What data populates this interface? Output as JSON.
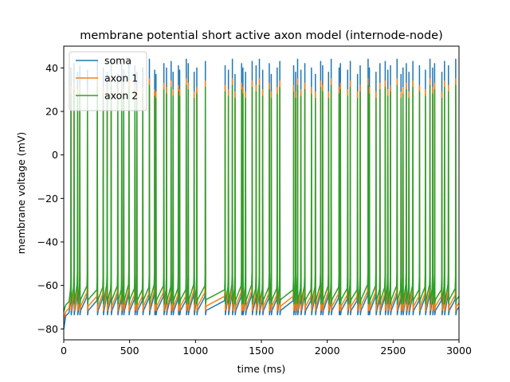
{
  "chart_data": {
    "type": "line",
    "title": "membrane potential short active axon model (internode-node)",
    "xlabel": "time (ms)",
    "ylabel": "membrane voltage (mV)",
    "xlim": [
      0,
      3000
    ],
    "ylim": [
      -85,
      50
    ],
    "xticks": [
      0,
      500,
      1000,
      1500,
      2000,
      2500,
      3000
    ],
    "yticks": [
      -80,
      -60,
      -40,
      -20,
      0,
      20,
      40
    ],
    "grid": false,
    "legend_position": "top-left",
    "spike_times_ms": [
      55,
      78,
      105,
      122,
      180,
      255,
      300,
      330,
      360,
      410,
      440,
      455,
      495,
      540,
      555,
      600,
      650,
      690,
      700,
      760,
      780,
      815,
      830,
      870,
      880,
      930,
      945,
      990,
      1010,
      1075,
      1225,
      1250,
      1280,
      1300,
      1350,
      1360,
      1380,
      1430,
      1460,
      1485,
      1510,
      1560,
      1575,
      1620,
      1640,
      1745,
      1760,
      1775,
      1800,
      1830,
      1880,
      1910,
      1950,
      1965,
      2010,
      2030,
      2090,
      2100,
      2155,
      2175,
      2230,
      2250,
      2310,
      2320,
      2370,
      2400,
      2440,
      2460,
      2480,
      2530,
      2560,
      2575,
      2600,
      2620,
      2650,
      2700,
      2745,
      2780,
      2800,
      2815,
      2870,
      2890,
      2920,
      2975
    ],
    "series": [
      {
        "name": "soma",
        "color": "#1f77b4",
        "baseline_mV": -71,
        "resting_start_mV": -80,
        "peak_values_mV": [
          40,
          42,
          38,
          41,
          39,
          43,
          40,
          38,
          44,
          37,
          42,
          39,
          43,
          41,
          38,
          40,
          44,
          39,
          37,
          42,
          40,
          43,
          38,
          41,
          39,
          44,
          42,
          38,
          40,
          43,
          41,
          39,
          44,
          37,
          42,
          40,
          38,
          43,
          41,
          44,
          39,
          42,
          37,
          40,
          43,
          41,
          38,
          44,
          39,
          42,
          40,
          37,
          43,
          41,
          38,
          44,
          40,
          42,
          39,
          43,
          37,
          41,
          44,
          40,
          38,
          42,
          43,
          39,
          41,
          44,
          37,
          40,
          42,
          38,
          43,
          41,
          39,
          44,
          40,
          42,
          38,
          43,
          41,
          44
        ]
      },
      {
        "name": "axon 1",
        "color": "#ff7f0e",
        "baseline_mV": -69,
        "resting_start_mV": -76,
        "peak_values_mV": [
          31,
          33,
          30,
          32,
          29,
          34,
          31,
          30,
          35,
          29,
          33,
          30,
          34,
          32,
          29,
          31,
          35,
          30,
          29,
          33,
          31,
          34,
          30,
          32,
          30,
          35,
          33,
          29,
          31,
          34,
          32,
          30,
          35,
          29,
          33,
          31,
          29,
          34,
          32,
          35,
          30,
          33,
          29,
          31,
          34,
          32,
          29,
          35,
          30,
          33,
          31,
          29,
          34,
          32,
          29,
          35,
          31,
          33,
          30,
          34,
          29,
          32,
          35,
          31,
          29,
          33,
          34,
          30,
          32,
          35,
          29,
          31,
          33,
          29,
          34,
          32,
          30,
          35,
          31,
          33,
          29,
          34,
          32,
          35
        ]
      },
      {
        "name": "axon 2",
        "color": "#2ca02c",
        "baseline_mV": -66,
        "resting_start_mV": -72,
        "peak_values_mV": [
          28,
          30,
          27,
          29,
          27,
          31,
          28,
          27,
          32,
          26,
          30,
          27,
          31,
          29,
          26,
          28,
          32,
          27,
          26,
          30,
          28,
          31,
          27,
          29,
          27,
          32,
          30,
          26,
          28,
          31,
          29,
          27,
          32,
          26,
          30,
          28,
          26,
          31,
          29,
          32,
          27,
          30,
          26,
          28,
          31,
          29,
          26,
          32,
          27,
          30,
          28,
          26,
          31,
          29,
          26,
          32,
          28,
          30,
          27,
          31,
          26,
          29,
          32,
          28,
          26,
          30,
          31,
          27,
          29,
          32,
          26,
          28,
          30,
          26,
          31,
          29,
          27,
          32,
          28,
          30,
          26,
          31,
          29,
          32
        ]
      }
    ]
  }
}
